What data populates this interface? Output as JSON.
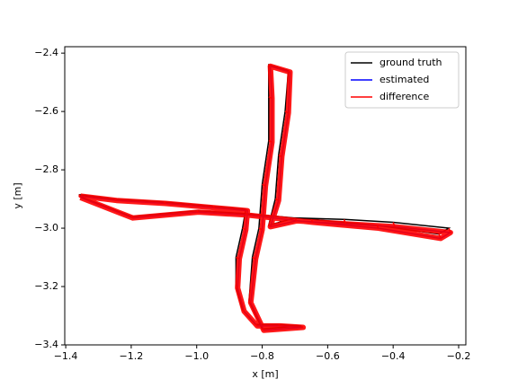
{
  "chart_data": {
    "type": "trajectory",
    "xlabel": "x [m]",
    "ylabel": "y [m]",
    "xlim": [
      -1.403,
      -0.178
    ],
    "ylim": [
      -3.4,
      -2.378
    ],
    "xticks": [
      {
        "value": -1.4,
        "label": "−1.4"
      },
      {
        "value": -1.2,
        "label": "−1.2"
      },
      {
        "value": -1.0,
        "label": "−1.0"
      },
      {
        "value": -0.8,
        "label": "−0.8"
      },
      {
        "value": -0.6,
        "label": "−0.6"
      },
      {
        "value": -0.4,
        "label": "−0.4"
      },
      {
        "value": -0.2,
        "label": "−0.2"
      }
    ],
    "yticks": [
      {
        "value": -2.4,
        "label": "−2.4"
      },
      {
        "value": -2.6,
        "label": "−2.6"
      },
      {
        "value": -2.8,
        "label": "−2.8"
      },
      {
        "value": -3.0,
        "label": "−3.0"
      },
      {
        "value": -3.2,
        "label": "−3.2"
      },
      {
        "value": -3.4,
        "label": "−3.4"
      }
    ],
    "legend": "upper right",
    "series": [
      {
        "name": "ground truth",
        "color": "#000000",
        "x": [
          -1.36,
          -1.25,
          -1.1,
          -0.95,
          -0.85,
          -0.86,
          -0.88,
          -0.88,
          -0.86,
          -0.82,
          -0.75,
          -0.68,
          -0.8,
          -0.84,
          -0.83,
          -0.81,
          -0.8,
          -0.78,
          -0.78,
          -0.78,
          -0.72,
          -0.73,
          -0.75,
          -0.76,
          -0.78,
          -0.7,
          -0.55,
          -0.4,
          -0.23,
          -0.26,
          -0.45,
          -0.65,
          -0.85,
          -1.0,
          -1.2,
          -1.36
        ],
        "y": [
          -2.885,
          -2.9,
          -2.91,
          -2.925,
          -2.935,
          -3.0,
          -3.1,
          -3.2,
          -3.28,
          -3.33,
          -3.33,
          -3.335,
          -3.345,
          -3.25,
          -3.1,
          -3.0,
          -2.85,
          -2.7,
          -2.55,
          -2.44,
          -2.46,
          -2.6,
          -2.75,
          -2.9,
          -2.99,
          -2.965,
          -2.97,
          -2.98,
          -3.0,
          -3.02,
          -2.99,
          -2.97,
          -2.95,
          -2.94,
          -2.96,
          -2.89
        ]
      },
      {
        "name": "estimated",
        "color": "#0000ff",
        "x": [
          -1.355,
          -1.245,
          -1.095,
          -0.945,
          -0.845,
          -0.85,
          -0.87,
          -0.875,
          -0.855,
          -0.815,
          -0.745,
          -0.675,
          -0.795,
          -0.835,
          -0.82,
          -0.8,
          -0.79,
          -0.77,
          -0.77,
          -0.775,
          -0.715,
          -0.72,
          -0.74,
          -0.75,
          -0.775,
          -0.695,
          -0.545,
          -0.395,
          -0.225,
          -0.255,
          -0.445,
          -0.645,
          -0.845,
          -0.995,
          -1.195,
          -1.355
        ],
        "y": [
          -2.89,
          -2.905,
          -2.915,
          -2.93,
          -2.94,
          -3.005,
          -3.105,
          -3.205,
          -3.285,
          -3.335,
          -3.335,
          -3.34,
          -3.35,
          -3.255,
          -3.105,
          -3.005,
          -2.855,
          -2.705,
          -2.555,
          -2.445,
          -2.465,
          -2.605,
          -2.755,
          -2.905,
          -2.995,
          -2.975,
          -2.985,
          -2.995,
          -3.015,
          -3.035,
          -3.0,
          -2.98,
          -2.955,
          -2.945,
          -2.965,
          -2.895
        ]
      },
      {
        "name": "difference",
        "color": "#ff0000"
      }
    ]
  }
}
